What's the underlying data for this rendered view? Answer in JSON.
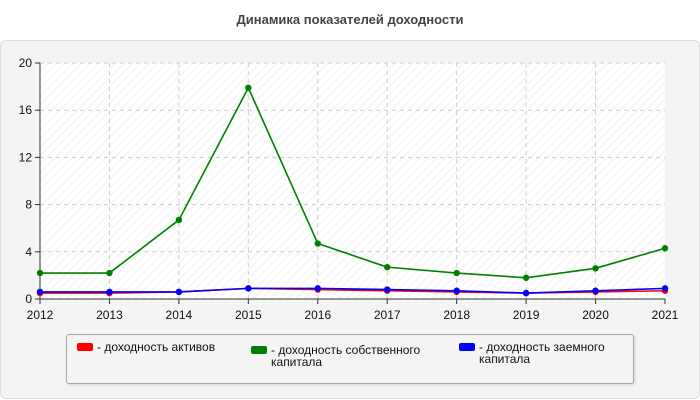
{
  "chart_data": {
    "type": "line",
    "title": "Динамика показателей доходности",
    "x": [
      "2012",
      "2013",
      "2014",
      "2015",
      "2016",
      "2017",
      "2018",
      "2019",
      "2020",
      "2021"
    ],
    "ylim": [
      0,
      20
    ],
    "yticks": [
      "0",
      "4",
      "8",
      "12",
      "16",
      "20"
    ],
    "grid": true,
    "legend_position": "bottom",
    "series": [
      {
        "name": "- доходность активов",
        "color": "#ff0000",
        "values": [
          0.5,
          0.5,
          0.6,
          0.9,
          0.8,
          0.7,
          0.6,
          0.5,
          0.6,
          0.7
        ]
      },
      {
        "name": "- доходность собственного\nкапитала",
        "color": "#008000",
        "values": [
          2.2,
          2.2,
          6.7,
          17.9,
          4.7,
          2.7,
          2.2,
          1.8,
          2.6,
          4.3
        ]
      },
      {
        "name": "- доходность заемного\nкапитала",
        "color": "#0000ff",
        "values": [
          0.6,
          0.6,
          0.6,
          0.9,
          0.9,
          0.8,
          0.7,
          0.5,
          0.7,
          0.9
        ]
      }
    ]
  }
}
